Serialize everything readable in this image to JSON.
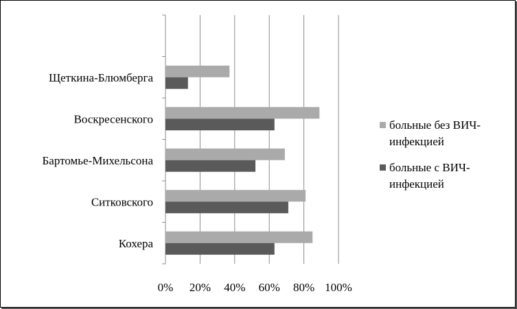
{
  "chart_data": {
    "type": "bar",
    "orientation": "horizontal",
    "categories": [
      "Кохера",
      "Ситковского",
      "Бартомье-Михельсона",
      "Воскресенского",
      "Щеткина-Блюмберга",
      ""
    ],
    "series": [
      {
        "name": "больные без ВИЧ-инфекцией",
        "name_lines": [
          "больные без ВИЧ-",
          "инфекцией"
        ],
        "color": "#aaaaaa",
        "values": [
          85,
          81,
          69,
          89,
          37,
          null
        ]
      },
      {
        "name": "больные с ВИЧ-инфекцией",
        "name_lines": [
          "больные с ВИЧ-",
          "инфекцией"
        ],
        "color": "#5a5a5a",
        "values": [
          63,
          71,
          52,
          63,
          13,
          null
        ]
      }
    ],
    "x_ticks": [
      "0%",
      "20%",
      "40%",
      "60%",
      "80%",
      "100%"
    ],
    "xlim": [
      0,
      100
    ],
    "grid": true,
    "legend": "right",
    "title": "",
    "xlabel": "",
    "ylabel": ""
  }
}
